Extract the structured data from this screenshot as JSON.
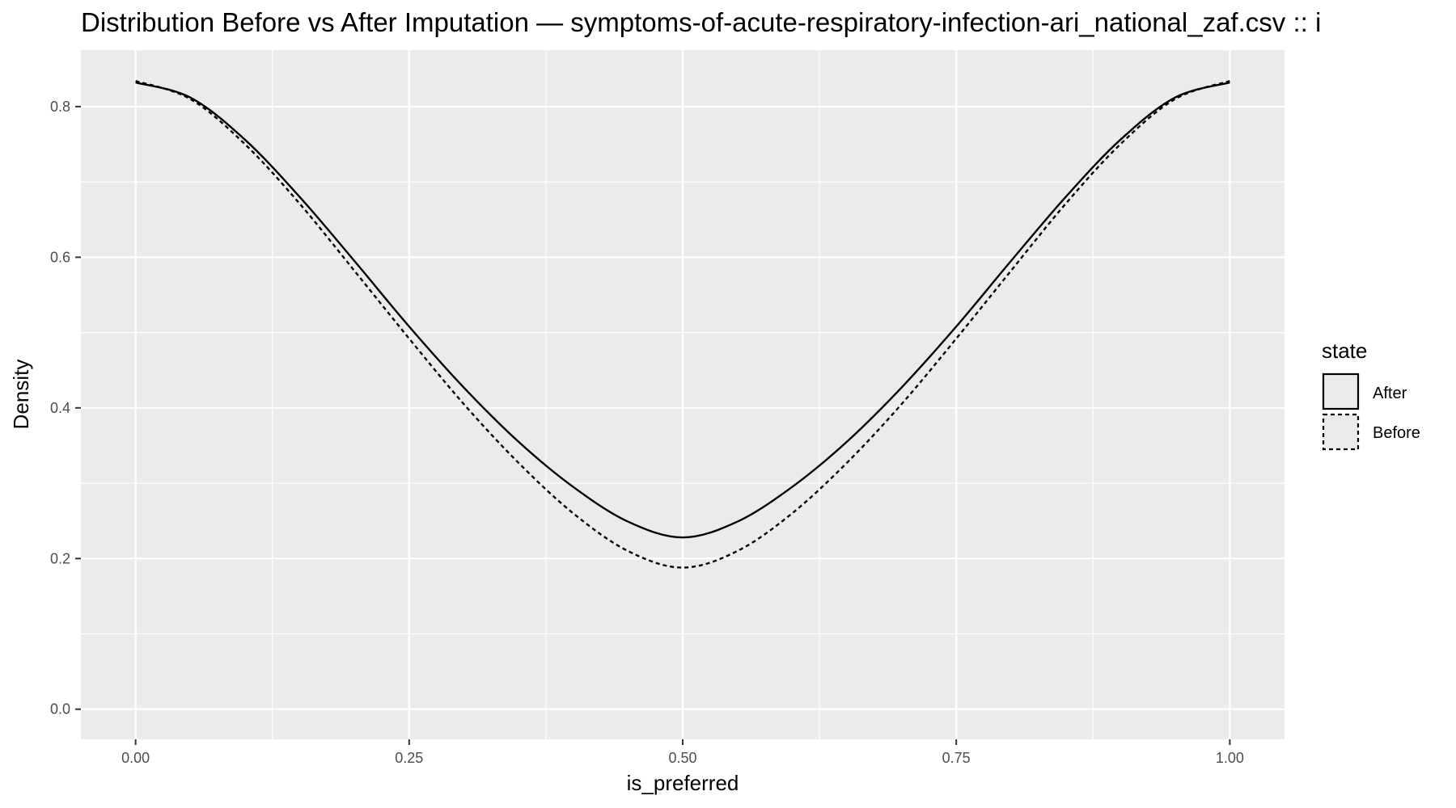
{
  "chart_data": {
    "type": "line",
    "title": "Distribution Before vs After Imputation — symptoms-of-acute-respiratory-infection-ari_national_zaf.csv :: i",
    "xlabel": "is_preferred",
    "ylabel": "Density",
    "xlim": [
      -0.05,
      1.05
    ],
    "ylim": [
      -0.04,
      0.875
    ],
    "x_ticks": [
      "0.00",
      "0.25",
      "0.50",
      "0.75",
      "1.00"
    ],
    "x_tick_values": [
      0,
      0.25,
      0.5,
      0.75,
      1.0
    ],
    "y_ticks": [
      "0.0",
      "0.2",
      "0.4",
      "0.6",
      "0.8"
    ],
    "y_tick_values": [
      0,
      0.2,
      0.4,
      0.6,
      0.8
    ],
    "grid": true,
    "panel_background": "#ebebeb",
    "grid_color": "#ffffff",
    "line_color": "#000000",
    "legend": {
      "title": "state",
      "position": "right",
      "entries": [
        {
          "label": "After",
          "linetype": "solid"
        },
        {
          "label": "Before",
          "linetype": "dashed"
        }
      ]
    },
    "series": [
      {
        "name": "After",
        "linetype": "solid",
        "x": [
          0,
          0.05,
          0.1,
          0.15,
          0.2,
          0.25,
          0.3,
          0.35,
          0.4,
          0.45,
          0.5,
          0.55,
          0.6,
          0.65,
          0.7,
          0.75,
          0.8,
          0.85,
          0.9,
          0.95,
          1.0
        ],
        "y": [
          0.832,
          0.812,
          0.756,
          0.68,
          0.595,
          0.508,
          0.427,
          0.355,
          0.295,
          0.249,
          0.228,
          0.249,
          0.295,
          0.355,
          0.427,
          0.508,
          0.595,
          0.68,
          0.756,
          0.812,
          0.832
        ]
      },
      {
        "name": "Before",
        "linetype": "dashed",
        "x": [
          0,
          0.05,
          0.1,
          0.15,
          0.2,
          0.25,
          0.3,
          0.35,
          0.4,
          0.45,
          0.5,
          0.55,
          0.6,
          0.65,
          0.7,
          0.75,
          0.8,
          0.85,
          0.9,
          0.95,
          1.0
        ],
        "y": [
          0.834,
          0.81,
          0.75,
          0.671,
          0.582,
          0.492,
          0.405,
          0.327,
          0.26,
          0.21,
          0.188,
          0.21,
          0.26,
          0.327,
          0.405,
          0.492,
          0.582,
          0.671,
          0.75,
          0.81,
          0.834
        ]
      }
    ]
  }
}
